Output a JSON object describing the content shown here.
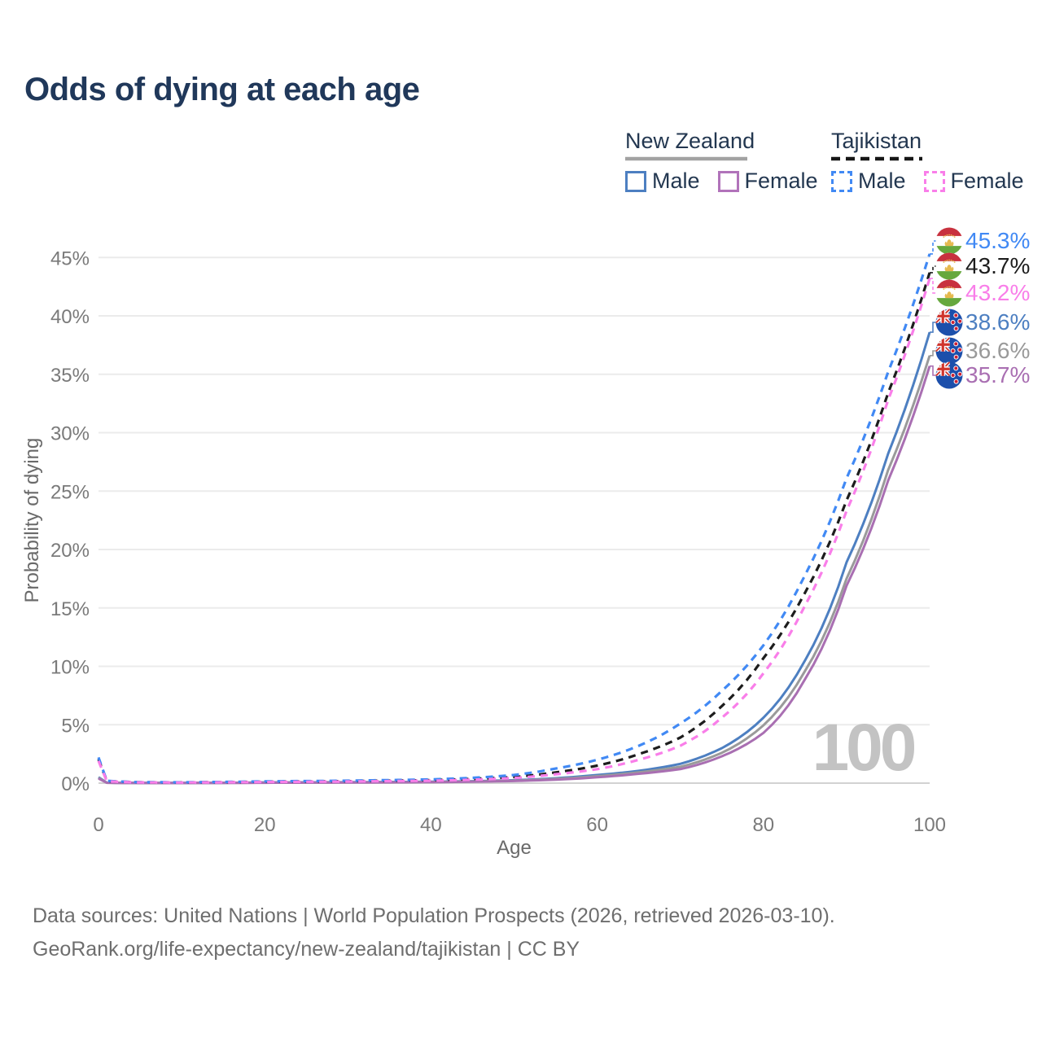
{
  "title": "Odds of dying at each age",
  "watermark": "100",
  "legend": {
    "groups": [
      {
        "name": "New Zealand",
        "line_style": "solid",
        "line_color": "#a2a2a2",
        "items": [
          {
            "label": "Male",
            "color": "#4d7fc1",
            "dashed": false
          },
          {
            "label": "Female",
            "color": "#b173ba",
            "dashed": false
          }
        ]
      },
      {
        "name": "Tajikistan",
        "line_style": "dashed",
        "line_color": "#161616",
        "items": [
          {
            "label": "Male",
            "color": "#4189f4",
            "dashed": true
          },
          {
            "label": "Female",
            "color": "#f97ee9",
            "dashed": true
          }
        ]
      }
    ]
  },
  "footer": {
    "line1": "Data sources: United Nations | World Population Prospects (2026, retrieved 2026-03-10).",
    "line2": "GeoRank.org/life-expectancy/new-zealand/tajikistan | CC BY"
  },
  "chart_data": {
    "type": "line",
    "title": "Odds of dying at each age",
    "xlabel": "Age",
    "ylabel": "Probability of dying",
    "y_unit": "percent",
    "xlim": [
      0,
      100
    ],
    "ylim": [
      0,
      47
    ],
    "x_ticks": [
      0,
      20,
      40,
      60,
      80,
      100
    ],
    "y_ticks": [
      0,
      5,
      10,
      15,
      20,
      25,
      30,
      35,
      40,
      45
    ],
    "grid": "horizontal",
    "legend_position": "top-right",
    "ages": [
      0,
      1,
      5,
      10,
      20,
      30,
      40,
      45,
      50,
      55,
      60,
      65,
      70,
      75,
      80,
      85,
      90,
      95,
      100
    ],
    "series": [
      {
        "name": "New Zealand Male",
        "country": "New Zealand",
        "sex": "Male",
        "color": "#4d7fc1",
        "dashed": false,
        "flag": "new-zealand",
        "end_label": "38.6%",
        "values": [
          0.5,
          0.04,
          0.012,
          0.012,
          0.06,
          0.08,
          0.12,
          0.17,
          0.25,
          0.42,
          0.7,
          1.05,
          1.65,
          3.0,
          5.6,
          10.5,
          18.9,
          28.2,
          38.6
        ]
      },
      {
        "name": "New Zealand Both sexes",
        "country": "New Zealand",
        "sex": "Both",
        "color": "#9a9a9a",
        "dashed": false,
        "flag": "new-zealand",
        "end_label": "36.6%",
        "values": [
          0.45,
          0.035,
          0.01,
          0.01,
          0.045,
          0.065,
          0.1,
          0.14,
          0.21,
          0.36,
          0.6,
          0.92,
          1.4,
          2.6,
          4.95,
          9.6,
          17.5,
          26.8,
          36.6
        ]
      },
      {
        "name": "New Zealand Female",
        "country": "New Zealand",
        "sex": "Female",
        "color": "#a96fb2",
        "dashed": false,
        "flag": "new-zealand",
        "end_label": "35.7%",
        "values": [
          0.4,
          0.03,
          0.009,
          0.009,
          0.03,
          0.05,
          0.085,
          0.12,
          0.18,
          0.3,
          0.5,
          0.8,
          1.2,
          2.3,
          4.3,
          8.9,
          16.9,
          25.9,
          35.7
        ]
      },
      {
        "name": "Tajikistan Both sexes",
        "country": "Tajikistan",
        "sex": "Both",
        "color": "#1d1d1d",
        "dashed": true,
        "flag": "tajikistan",
        "end_label": "43.7%",
        "values": [
          2.05,
          0.18,
          0.07,
          0.06,
          0.12,
          0.17,
          0.26,
          0.36,
          0.52,
          0.92,
          1.5,
          2.48,
          3.9,
          6.6,
          10.7,
          16.3,
          24.2,
          33.4,
          43.7
        ]
      },
      {
        "name": "Tajikistan Male",
        "country": "Tajikistan",
        "sex": "Male",
        "color": "#4189f4",
        "dashed": true,
        "flag": "tajikistan",
        "end_label": "45.3%",
        "values": [
          2.2,
          0.2,
          0.08,
          0.07,
          0.15,
          0.21,
          0.32,
          0.45,
          0.7,
          1.25,
          2.0,
          3.2,
          5.1,
          7.9,
          11.8,
          17.8,
          26.1,
          35.2,
          45.3
        ]
      },
      {
        "name": "Tajikistan Female",
        "country": "Tajikistan",
        "sex": "Female",
        "color": "#f97ee9",
        "dashed": true,
        "flag": "tajikistan",
        "end_label": "43.2%",
        "values": [
          1.9,
          0.16,
          0.06,
          0.05,
          0.1,
          0.14,
          0.21,
          0.29,
          0.44,
          0.76,
          1.2,
          2.0,
          3.2,
          5.6,
          9.4,
          15.2,
          23.3,
          32.8,
          43.2
        ]
      }
    ],
    "colors": {
      "grid": "#ebebeb",
      "zero_line": "#d2d2d2",
      "tick_text": "#7a7a7a",
      "axis_title_text": "#6a6a6a",
      "watermark": "#c3c3c3",
      "title_text": "#20385a",
      "footer_text": "#6e6e6e",
      "flag_nz_blue": "#1c4fab",
      "flag_red": "#c8313e",
      "flag_green": "#66a83d",
      "flag_gold": "#e5b94e"
    }
  }
}
